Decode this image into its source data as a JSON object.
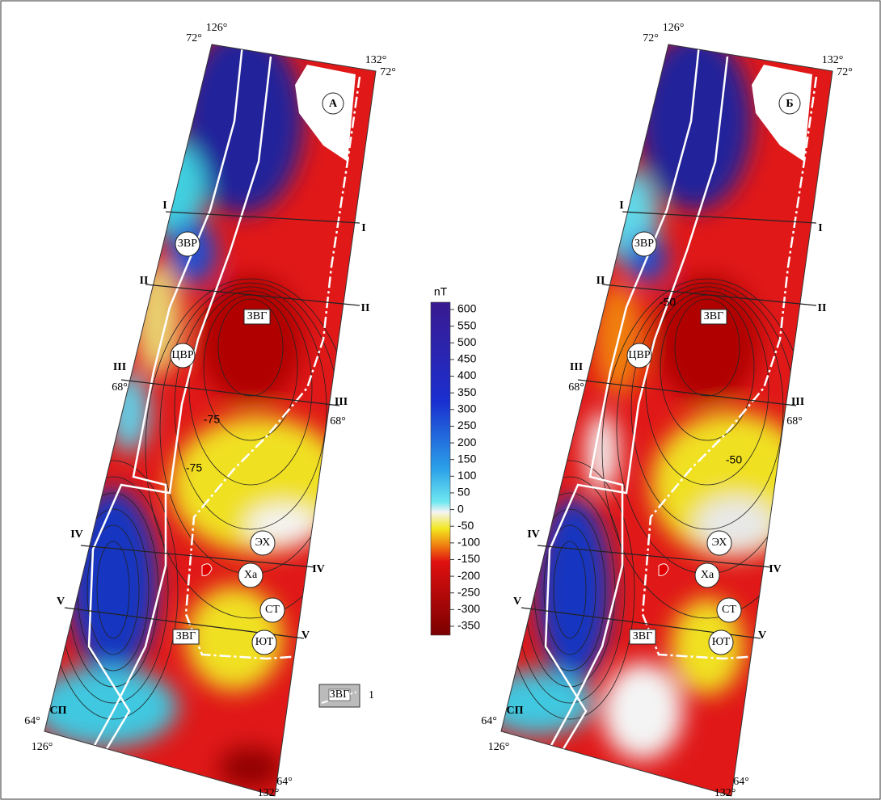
{
  "panels": [
    {
      "letter": "А",
      "coords": [
        "126°",
        "72°",
        "132°",
        "72°",
        "68°",
        "68°",
        "64°",
        "126°",
        "64°",
        "132°"
      ],
      "profiles": [
        "I",
        "I",
        "II",
        "II",
        "III",
        "III",
        "IV",
        "IV",
        "V",
        "V"
      ],
      "features": [
        "ЗВР",
        "ЦВР",
        "ЗВГ",
        "ЗВГ",
        "ЭХ",
        "Ха",
        "СТ",
        "ЮТ",
        "СП"
      ],
      "contour_labels": [
        "-75",
        "-75"
      ]
    },
    {
      "letter": "Б",
      "coords": [
        "126°",
        "72°",
        "132°",
        "72°",
        "68°",
        "68°",
        "64°",
        "126°",
        "64°",
        "132°"
      ],
      "profiles": [
        "I",
        "I",
        "II",
        "II",
        "III",
        "III",
        "IV",
        "IV",
        "V",
        "V"
      ],
      "features": [
        "ЗВР",
        "ЦВР",
        "ЗВГ",
        "ЗВГ",
        "ЭХ",
        "Ха",
        "СТ",
        "ЮТ",
        "СП"
      ],
      "contour_labels": [
        "-50",
        "-50"
      ]
    }
  ],
  "colorbar": {
    "unit": "nT",
    "ticks": [
      600,
      550,
      500,
      450,
      400,
      350,
      300,
      250,
      200,
      150,
      100,
      50,
      0,
      -50,
      -100,
      -150,
      -200,
      -250,
      -300,
      -350
    ]
  },
  "legend": {
    "symbol": "ЗВГ",
    "number": "1"
  }
}
